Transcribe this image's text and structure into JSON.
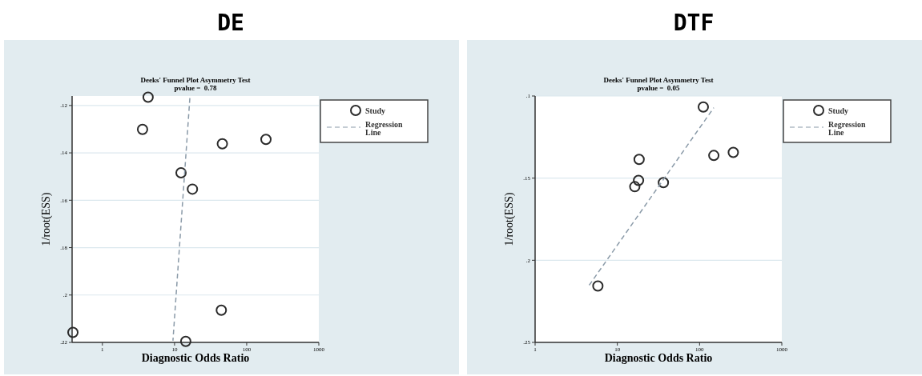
{
  "chart_data": [
    {
      "type": "scatter",
      "title": "DE",
      "subtitle": "Deeks' Funnel Plot Asymmetry Test",
      "annotations": [
        "pvalue =  0.78"
      ],
      "xlabel": "Diagnostic Odds Ratio",
      "ylabel": "1/root(ESS)",
      "log": "x",
      "grid": "y",
      "legend": "top right",
      "marker": "circle",
      "xlim": [
        0.38,
        1000
      ],
      "xticks": [
        1,
        10,
        100,
        1000
      ],
      "ylim": [
        0.22,
        0.116
      ],
      "yticks": [
        {
          "value": 0.12,
          "label": ".12"
        },
        {
          "value": 0.14,
          "label": ".14"
        },
        {
          "value": 0.16,
          "label": ".16"
        },
        {
          "value": 0.18,
          "label": ".18"
        },
        {
          "value": 0.2,
          "label": ".2"
        },
        {
          "value": 0.22,
          "label": ".22"
        }
      ],
      "series": [
        {
          "name": "Study",
          "color": "#2b2b2b",
          "x": [
            4.3,
            3.6,
            46,
            185,
            12.3,
            17.7,
            44.5,
            0.39,
            14.3
          ],
          "values": [
            0.1165,
            0.1301,
            0.1362,
            0.1343,
            0.1484,
            0.1553,
            0.2064,
            0.2158,
            0.2196
          ]
        },
        {
          "name": "Regression Line",
          "type": "line",
          "color": "#8a9aa8",
          "line_style": "dashed",
          "marker": "none",
          "x": [
            16.3,
            9.5
          ],
          "values": [
            0.1169,
            0.2193
          ]
        }
      ]
    },
    {
      "type": "scatter",
      "title": "DTF",
      "subtitle": "Deeks' Funnel Plot Asymmetry Test",
      "annotations": [
        "pvalue =  0.05"
      ],
      "xlabel": "Diagnostic Odds Ratio",
      "ylabel": "1/root(ESS)",
      "log": "x",
      "grid": "y",
      "legend": "top right",
      "marker": "circle",
      "xlim": [
        1,
        1000
      ],
      "xticks": [
        1,
        10,
        100,
        1000
      ],
      "ylim": [
        0.25,
        0.1
      ],
      "yticks": [
        {
          "value": 0.1,
          "label": ".1"
        },
        {
          "value": 0.15,
          "label": ".15"
        },
        {
          "value": 0.2,
          "label": ".2"
        },
        {
          "value": 0.25,
          "label": ".25"
        }
      ],
      "series": [
        {
          "name": "Study",
          "color": "#2b2b2b",
          "x": [
            111,
            149,
            257,
            18.4,
            18.1,
            16.3,
            36.3,
            5.8
          ],
          "values": [
            0.1067,
            0.1362,
            0.1343,
            0.1386,
            0.1514,
            0.1552,
            0.1527,
            0.2157
          ]
        },
        {
          "name": "Regression Line",
          "type": "line",
          "color": "#8a9aa8",
          "line_style": "dashed",
          "marker": "none",
          "x": [
            4.55,
            149
          ],
          "values": [
            0.2152,
            0.1071
          ]
        }
      ]
    }
  ]
}
